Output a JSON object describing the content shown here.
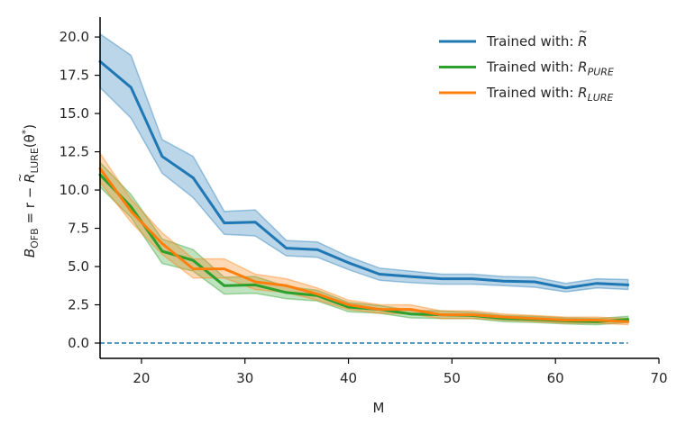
{
  "chart_data": {
    "type": "line",
    "title": "",
    "xlabel": "M",
    "ylabel": "B_OFB = r − R̃_LURE(θ*)",
    "ylabel_parts": {
      "b": "B",
      "b_sub": "OFB",
      "eq": " = r − ",
      "r": "R",
      "tilde": "~",
      "r_sub": "LURE",
      "theta": "(θ",
      "star": "*",
      "close": ")"
    },
    "xlim": [
      16,
      70
    ],
    "ylim": [
      -1.0,
      21.3
    ],
    "x_ticks": [
      20,
      30,
      40,
      50,
      60,
      70
    ],
    "y_ticks": [
      0.0,
      2.5,
      5.0,
      7.5,
      10.0,
      12.5,
      15.0,
      17.5,
      20.0
    ],
    "x_tick_labels": [
      "20",
      "30",
      "40",
      "50",
      "60",
      "70"
    ],
    "y_tick_labels": [
      "0.0",
      "2.5",
      "5.0",
      "7.5",
      "10.0",
      "12.5",
      "15.0",
      "17.5",
      "20.0"
    ],
    "x": [
      16,
      19,
      22,
      25,
      28,
      31,
      34,
      37,
      40,
      43,
      46,
      49,
      52,
      55,
      58,
      61,
      64,
      67
    ],
    "reference_line": {
      "y": 0,
      "style": "dashed",
      "color": "#1f77b4"
    },
    "legend_position": "top-right",
    "series": [
      {
        "name": "Trained with: R̃",
        "legend": {
          "prefix": "Trained with: ",
          "symbol": "R",
          "accent": "~",
          "sub": ""
        },
        "color": "#1f77b4",
        "values": [
          18.4,
          16.7,
          12.2,
          10.8,
          7.85,
          7.9,
          6.2,
          6.1,
          5.25,
          4.5,
          4.35,
          4.2,
          4.2,
          4.05,
          4.0,
          3.6,
          3.9,
          3.8
        ],
        "lower": [
          16.7,
          14.7,
          11.1,
          9.5,
          7.1,
          7.0,
          5.7,
          5.6,
          4.8,
          4.1,
          3.95,
          3.85,
          3.85,
          3.75,
          3.65,
          3.35,
          3.6,
          3.5
        ],
        "upper": [
          20.2,
          18.8,
          13.3,
          12.2,
          8.6,
          8.7,
          6.7,
          6.6,
          5.65,
          4.9,
          4.7,
          4.5,
          4.5,
          4.35,
          4.3,
          3.9,
          4.2,
          4.15
        ]
      },
      {
        "name": "Trained with: R_PURE",
        "legend": {
          "prefix": "Trained with: ",
          "symbol": "R",
          "accent": "",
          "sub": "PURE"
        },
        "color": "#2ca02c",
        "values": [
          11.0,
          8.9,
          6.0,
          5.4,
          3.75,
          3.8,
          3.3,
          3.1,
          2.35,
          2.2,
          1.9,
          1.85,
          1.8,
          1.6,
          1.55,
          1.45,
          1.4,
          1.55
        ],
        "lower": [
          10.2,
          8.2,
          5.2,
          4.7,
          3.2,
          3.25,
          2.9,
          2.75,
          2.05,
          1.95,
          1.65,
          1.6,
          1.6,
          1.4,
          1.35,
          1.25,
          1.2,
          1.35
        ],
        "upper": [
          11.8,
          9.7,
          6.8,
          6.1,
          4.3,
          4.35,
          3.7,
          3.45,
          2.65,
          2.45,
          2.15,
          2.1,
          2.0,
          1.8,
          1.75,
          1.65,
          1.6,
          1.75
        ]
      },
      {
        "name": "Trained with: R_LURE",
        "legend": {
          "prefix": "Trained with: ",
          "symbol": "R",
          "accent": "",
          "sub": "LURE"
        },
        "color": "#ff7f0e",
        "values": [
          11.4,
          8.6,
          6.5,
          4.85,
          4.85,
          4.0,
          3.75,
          3.2,
          2.5,
          2.2,
          2.2,
          1.85,
          1.85,
          1.7,
          1.6,
          1.5,
          1.5,
          1.4
        ],
        "lower": [
          10.5,
          7.9,
          5.8,
          4.25,
          4.25,
          3.5,
          3.3,
          2.8,
          2.2,
          1.95,
          1.9,
          1.6,
          1.6,
          1.5,
          1.4,
          1.3,
          1.3,
          1.2
        ],
        "upper": [
          12.4,
          9.4,
          7.2,
          5.5,
          5.5,
          4.5,
          4.2,
          3.6,
          2.8,
          2.5,
          2.5,
          2.1,
          2.1,
          1.9,
          1.8,
          1.7,
          1.7,
          1.6
        ]
      }
    ]
  }
}
